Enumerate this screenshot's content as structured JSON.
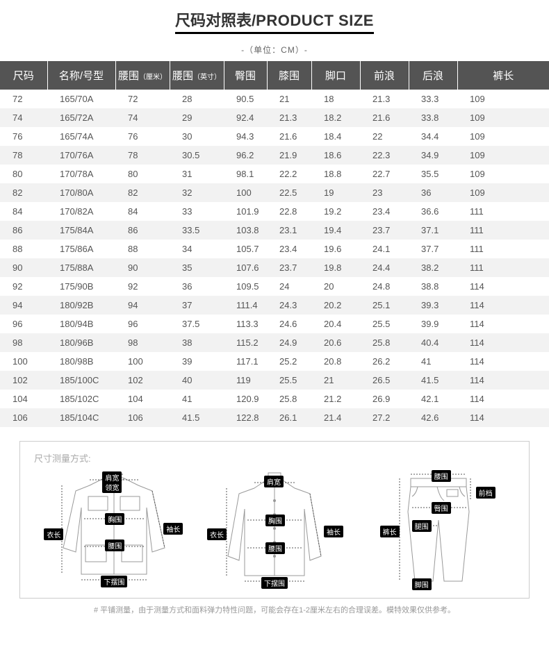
{
  "title": {
    "zh": "尺码对照表/",
    "en": "PRODUCT SIZE"
  },
  "unit_line": "-（单位：CM）-",
  "headers": {
    "size": "尺码",
    "name": "名称/号型",
    "waist_cm": "腰围",
    "waist_cm_sub": "（厘米）",
    "waist_in": "腰围",
    "waist_in_sub": "（英寸）",
    "hip": "臀围",
    "knee": "膝围",
    "foot": "脚口",
    "front_rise": "前浪",
    "back_rise": "后浪",
    "length": "裤长"
  },
  "rows": [
    [
      "72",
      "165/70A",
      "72",
      "28",
      "90.5",
      "21",
      "18",
      "21.3",
      "33.3",
      "109"
    ],
    [
      "74",
      "165/72A",
      "74",
      "29",
      "92.4",
      "21.3",
      "18.2",
      "21.6",
      "33.8",
      "109"
    ],
    [
      "76",
      "165/74A",
      "76",
      "30",
      "94.3",
      "21.6",
      "18.4",
      "22",
      "34.4",
      "109"
    ],
    [
      "78",
      "170/76A",
      "78",
      "30.5",
      "96.2",
      "21.9",
      "18.6",
      "22.3",
      "34.9",
      "109"
    ],
    [
      "80",
      "170/78A",
      "80",
      "31",
      "98.1",
      "22.2",
      "18.8",
      "22.7",
      "35.5",
      "109"
    ],
    [
      "82",
      "170/80A",
      "82",
      "32",
      "100",
      "22.5",
      "19",
      "23",
      "36",
      "109"
    ],
    [
      "84",
      "170/82A",
      "84",
      "33",
      "101.9",
      "22.8",
      "19.2",
      "23.4",
      "36.6",
      "111"
    ],
    [
      "86",
      "175/84A",
      "86",
      "33.5",
      "103.8",
      "23.1",
      "19.4",
      "23.7",
      "37.1",
      "111"
    ],
    [
      "88",
      "175/86A",
      "88",
      "34",
      "105.7",
      "23.4",
      "19.6",
      "24.1",
      "37.7",
      "111"
    ],
    [
      "90",
      "175/88A",
      "90",
      "35",
      "107.6",
      "23.7",
      "19.8",
      "24.4",
      "38.2",
      "111"
    ],
    [
      "92",
      "175/90B",
      "92",
      "36",
      "109.5",
      "24",
      "20",
      "24.8",
      "38.8",
      "114"
    ],
    [
      "94",
      "180/92B",
      "94",
      "37",
      "111.4",
      "24.3",
      "20.2",
      "25.1",
      "39.3",
      "114"
    ],
    [
      "96",
      "180/94B",
      "96",
      "37.5",
      "113.3",
      "24.6",
      "20.4",
      "25.5",
      "39.9",
      "114"
    ],
    [
      "98",
      "180/96B",
      "98",
      "38",
      "115.2",
      "24.9",
      "20.6",
      "25.8",
      "40.4",
      "114"
    ],
    [
      "100",
      "180/98B",
      "100",
      "39",
      "117.1",
      "25.2",
      "20.8",
      "26.2",
      "41",
      "114"
    ],
    [
      "102",
      "185/100C",
      "102",
      "40",
      "119",
      "25.5",
      "21",
      "26.5",
      "41.5",
      "114"
    ],
    [
      "104",
      "185/102C",
      "104",
      "41",
      "120.9",
      "25.8",
      "21.2",
      "26.9",
      "42.1",
      "114"
    ],
    [
      "106",
      "185/104C",
      "106",
      "41.5",
      "122.8",
      "26.1",
      "21.4",
      "27.2",
      "42.6",
      "114"
    ]
  ],
  "diagram": {
    "caption": "尺寸测量方式:",
    "jacket_labels": {
      "shoulder": "肩宽",
      "collar": "领宽",
      "chest": "胸围",
      "body_len": "衣长",
      "sleeve": "袖长",
      "waist": "腰围",
      "hem": "下摆围"
    },
    "shirt_labels": {
      "shoulder": "肩宽",
      "chest": "胸围",
      "body_len": "衣长",
      "sleeve": "袖长",
      "waist": "腰围",
      "hem": "下摆围"
    },
    "pants_labels": {
      "waist": "腰围",
      "front_rise": "前档",
      "hip": "臀围",
      "thigh": "腿围",
      "out_len": "裤长",
      "foot": "脚围"
    }
  },
  "footnote": "# 平铺测量，由于测量方式和面料弹力特性问题，可能会存在1-2厘米左右的合理误差。模特效果仅供参考。",
  "colors": {
    "header_bg": "#545454",
    "row_alt": "#f2f2f2",
    "text": "#555555",
    "title_underline": "#000000",
    "diagram_border": "#cccccc",
    "footnote": "#999999"
  }
}
